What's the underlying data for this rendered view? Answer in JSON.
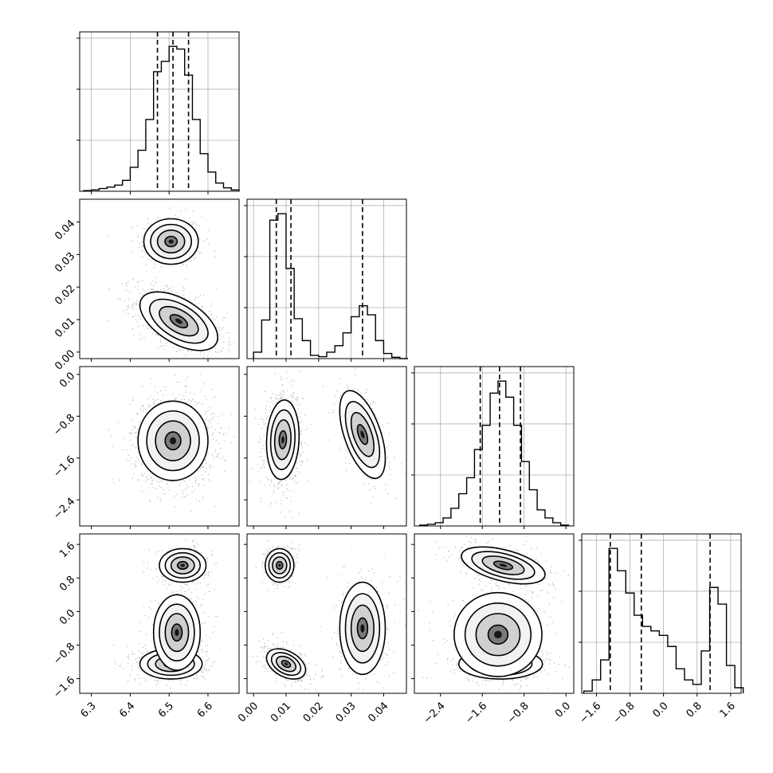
{
  "figure": {
    "title": "",
    "type": "corner-plot"
  },
  "chart_data": [
    {
      "type": "histogram",
      "panel": "1-1",
      "x_ticks": [
        "6.3",
        "6.4",
        "6.5",
        "6.6"
      ],
      "xlim": [
        6.27,
        6.68
      ],
      "bins": [
        6.28,
        6.3,
        6.32,
        6.34,
        6.36,
        6.38,
        6.4,
        6.42,
        6.44,
        6.46,
        6.48,
        6.5,
        6.52,
        6.54,
        6.56,
        6.58,
        6.6,
        6.62,
        6.64,
        6.66
      ],
      "counts": [
        1,
        2,
        4,
        6,
        9,
        16,
        35,
        60,
        105,
        175,
        190,
        212,
        208,
        170,
        105,
        55,
        28,
        12,
        5,
        2
      ],
      "quantile_lines": [
        6.47,
        6.51,
        6.55
      ],
      "grid": true
    },
    {
      "type": "histogram",
      "panel": "2-2",
      "x_ticks": [
        "0.00",
        "0.01",
        "0.02",
        "0.03",
        "0.04"
      ],
      "xlim": [
        -0.002,
        0.047
      ],
      "bins": [
        0.0,
        0.0025,
        0.005,
        0.0075,
        0.01,
        0.0125,
        0.015,
        0.0175,
        0.02,
        0.0225,
        0.025,
        0.0275,
        0.03,
        0.0325,
        0.035,
        0.0375,
        0.04,
        0.0425,
        0.045
      ],
      "counts": [
        10,
        60,
        215,
        225,
        140,
        62,
        28,
        5,
        3,
        10,
        20,
        40,
        65,
        82,
        68,
        28,
        8,
        2
      ],
      "quantile_lines": [
        0.007,
        0.0115,
        0.0335
      ],
      "grid": true
    },
    {
      "type": "histogram",
      "panel": "3-3",
      "x_ticks": [
        "-2.4",
        "-1.6",
        "-0.8",
        "0.0"
      ],
      "xlim": [
        -2.9,
        0.15
      ],
      "bins": [
        -2.8,
        -2.65,
        -2.5,
        -2.35,
        -2.2,
        -2.05,
        -1.9,
        -1.75,
        -1.6,
        -1.45,
        -1.3,
        -1.15,
        -1.0,
        -0.85,
        -0.7,
        -0.55,
        -0.4,
        -0.25,
        -0.1
      ],
      "counts": [
        1,
        2,
        4,
        10,
        22,
        40,
        60,
        95,
        125,
        165,
        180,
        160,
        125,
        80,
        45,
        20,
        10,
        4,
        1
      ],
      "quantile_lines": [
        -1.64,
        -1.27,
        -0.87
      ],
      "grid": true
    },
    {
      "type": "histogram",
      "panel": "4-4",
      "x_ticks": [
        "-1.6",
        "-0.8",
        "0.0",
        "0.8",
        "1.6"
      ],
      "xlim": [
        -1.95,
        1.85
      ],
      "bins": [
        -1.9,
        -1.7,
        -1.5,
        -1.3,
        -1.1,
        -0.9,
        -0.7,
        -0.5,
        -0.3,
        -0.1,
        0.1,
        0.3,
        0.5,
        0.7,
        0.9,
        1.1,
        1.3,
        1.5,
        1.7
      ],
      "counts": [
        2,
        12,
        30,
        130,
        110,
        90,
        70,
        60,
        56,
        52,
        42,
        22,
        12,
        8,
        38,
        95,
        80,
        25,
        5
      ],
      "quantile_lines": [
        -1.27,
        -0.53,
        1.11
      ],
      "grid": true
    },
    {
      "type": "2d-histogram",
      "panel": "2-1",
      "x_range": [
        6.27,
        6.68
      ],
      "y_range": [
        -0.002,
        0.047
      ],
      "y_ticks": [
        "0.00",
        "0.01",
        "0.02",
        "0.03",
        "0.04"
      ],
      "modes": [
        {
          "x": 6.505,
          "y": 0.034,
          "sx": 0.035,
          "sy": 0.0035,
          "rho": 0.0,
          "weight": 0.3
        },
        {
          "x": 6.525,
          "y": 0.0095,
          "sx": 0.05,
          "sy": 0.0045,
          "rho": -0.55,
          "weight": 0.7
        }
      ]
    },
    {
      "type": "2d-histogram",
      "panel": "3-1",
      "x_range": [
        6.27,
        6.68
      ],
      "y_range": [
        -2.9,
        0.15
      ],
      "y_ticks": [
        "-2.4",
        "-1.6",
        "-0.8",
        "0.0"
      ],
      "modes": [
        {
          "x": 6.51,
          "y": -1.27,
          "sx": 0.045,
          "sy": 0.38,
          "rho": 0.0,
          "weight": 1.0
        }
      ]
    },
    {
      "type": "2d-histogram",
      "panel": "3-2",
      "x_range": [
        -0.002,
        0.047
      ],
      "y_range": [
        -2.9,
        0.15
      ],
      "modes": [
        {
          "x": 0.009,
          "y": -1.25,
          "sx": 0.0025,
          "sy": 0.38,
          "rho": 0.1,
          "weight": 0.7
        },
        {
          "x": 0.0335,
          "y": -1.15,
          "sx": 0.0035,
          "sy": 0.42,
          "rho": -0.55,
          "weight": 0.3
        }
      ]
    },
    {
      "type": "2d-histogram",
      "panel": "4-1",
      "x_range": [
        6.27,
        6.68
      ],
      "y_range": [
        -1.95,
        1.85
      ],
      "y_ticks": [
        "-1.6",
        "-0.8",
        "0.0",
        "0.8",
        "1.6"
      ],
      "modes": [
        {
          "x": 6.535,
          "y": 1.1,
          "sx": 0.03,
          "sy": 0.2,
          "rho": 0.0,
          "weight": 0.3
        },
        {
          "x": 6.505,
          "y": -1.25,
          "sx": 0.04,
          "sy": 0.18,
          "rho": 0.0,
          "weight": 0.4
        },
        {
          "x": 6.52,
          "y": -0.5,
          "sx": 0.03,
          "sy": 0.45,
          "rho": 0.0,
          "weight": 0.3
        }
      ]
    },
    {
      "type": "2d-histogram",
      "panel": "4-2",
      "x_range": [
        -0.002,
        0.047
      ],
      "y_range": [
        -1.95,
        1.85
      ],
      "modes": [
        {
          "x": 0.008,
          "y": 1.1,
          "sx": 0.0022,
          "sy": 0.2,
          "rho": 0.0,
          "weight": 0.3
        },
        {
          "x": 0.01,
          "y": -1.25,
          "sx": 0.003,
          "sy": 0.18,
          "rho": -0.4,
          "weight": 0.4
        },
        {
          "x": 0.0335,
          "y": -0.4,
          "sx": 0.0035,
          "sy": 0.55,
          "rho": 0.0,
          "weight": 0.3
        }
      ]
    },
    {
      "type": "2d-histogram",
      "panel": "4-3",
      "x_range": [
        -2.9,
        0.15
      ],
      "y_range": [
        -1.95,
        1.85
      ],
      "modes": [
        {
          "x": -1.2,
          "y": 1.1,
          "sx": 0.4,
          "sy": 0.22,
          "rho": -0.5,
          "weight": 0.3
        },
        {
          "x": -1.25,
          "y": -1.25,
          "sx": 0.4,
          "sy": 0.18,
          "rho": 0.0,
          "weight": 0.4
        },
        {
          "x": -1.3,
          "y": -0.55,
          "sx": 0.42,
          "sy": 0.5,
          "rho": 0.0,
          "weight": 0.3
        }
      ]
    }
  ]
}
